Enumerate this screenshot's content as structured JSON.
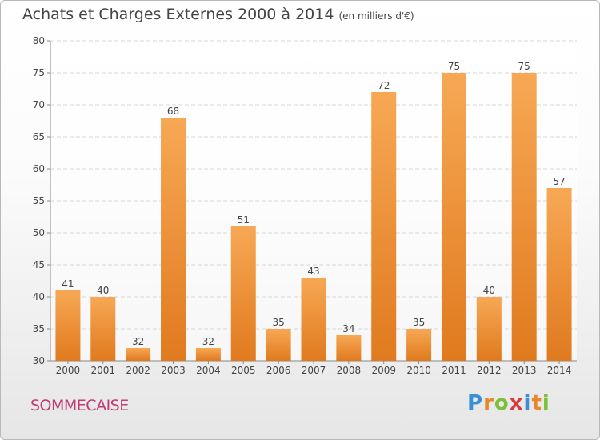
{
  "header": {
    "title": "Achats et Charges Externes 2000 à 2014",
    "unit": "(en milliers d'€)"
  },
  "footer": {
    "city": "SOMMECAISE",
    "brand": "Proxiti"
  },
  "colors": {
    "bar_top": "#f7a855",
    "bar_bottom": "#e07a1e",
    "city": "#c03a74"
  },
  "chart_data": {
    "type": "bar",
    "title": "Achats et Charges Externes 2000 à 2014",
    "subtitle": "(en milliers d'€)",
    "categories": [
      "2000",
      "2001",
      "2002",
      "2003",
      "2004",
      "2005",
      "2006",
      "2007",
      "2008",
      "2009",
      "2010",
      "2011",
      "2012",
      "2013",
      "2014"
    ],
    "values": [
      41,
      40,
      32,
      68,
      32,
      51,
      35,
      43,
      34,
      72,
      35,
      75,
      40,
      75,
      57
    ],
    "ylim": [
      30,
      80
    ],
    "yticks": [
      30,
      35,
      40,
      45,
      50,
      55,
      60,
      65,
      70,
      75,
      80
    ],
    "grid": true,
    "legend": "none"
  }
}
